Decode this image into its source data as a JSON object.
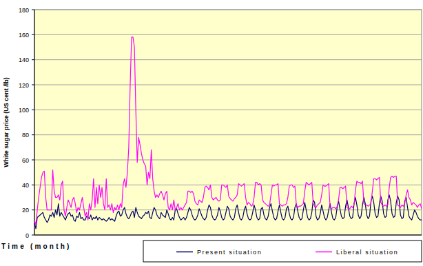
{
  "chart_data": {
    "type": "line",
    "y_label": "White sugar price (US cent /lb)",
    "x_label": "Time (month)",
    "ylim": [
      0,
      180
    ],
    "yticks": [
      0,
      20,
      40,
      60,
      80,
      100,
      120,
      140,
      160,
      180
    ],
    "grid": true,
    "legend": "bottom",
    "tick_labels": "y",
    "series": [
      {
        "name": "Present situation",
        "color": "#000066",
        "values": [
          10,
          5,
          14,
          15,
          16,
          17,
          18,
          14,
          12,
          10,
          12,
          16,
          15,
          18,
          14,
          20,
          16,
          25,
          15,
          18,
          16,
          14,
          12,
          15,
          17,
          18,
          15,
          16,
          12,
          11,
          15,
          14,
          18,
          13,
          14,
          12,
          12,
          15,
          14,
          13,
          16,
          12,
          14,
          13,
          15,
          12,
          14,
          13,
          12,
          13,
          12,
          11,
          12,
          14,
          12,
          13,
          12,
          11,
          15,
          18,
          19,
          15,
          16,
          20,
          22,
          17,
          14,
          13,
          15,
          18,
          19,
          14,
          22,
          18,
          15,
          14,
          13,
          15,
          16,
          18,
          17,
          19,
          14,
          13,
          18,
          22,
          20,
          16,
          14,
          13,
          18,
          16,
          15,
          14,
          20,
          17,
          13,
          12,
          14,
          12,
          20,
          21,
          17,
          14,
          12,
          13,
          14,
          12,
          14,
          18,
          22,
          20,
          16,
          13,
          12,
          13,
          16,
          21,
          18,
          15,
          13,
          12,
          14,
          20,
          24,
          22,
          16,
          13,
          12,
          13,
          16,
          22,
          19,
          14,
          12,
          13,
          18,
          23,
          21,
          15,
          13,
          12,
          14,
          21,
          24,
          18,
          13,
          12,
          14,
          20,
          23,
          17,
          13,
          12,
          13,
          18,
          24,
          20,
          14,
          12,
          13,
          21,
          22,
          16,
          13,
          12,
          15,
          22,
          25,
          19,
          14,
          12,
          13,
          19,
          24,
          18,
          13,
          12,
          14,
          21,
          23,
          17,
          13,
          12,
          14,
          22,
          25,
          19,
          14,
          12,
          13,
          20,
          26,
          20,
          14,
          12,
          13,
          18,
          28,
          26,
          15,
          12,
          13,
          17,
          24,
          19,
          14,
          12,
          14,
          20,
          25,
          18,
          13,
          12,
          14,
          22,
          27,
          21,
          15,
          13,
          14,
          23,
          28,
          22,
          15,
          13,
          14,
          25,
          30,
          24,
          16,
          13,
          15,
          24,
          30,
          25,
          16,
          13,
          15,
          27,
          31,
          26,
          17,
          14,
          15,
          25,
          31,
          27,
          17,
          14,
          15,
          28,
          32,
          27,
          17,
          14,
          15,
          26,
          31,
          28,
          16,
          13,
          14,
          27,
          30,
          22,
          15,
          13,
          12,
          16,
          20,
          18,
          15,
          13,
          12,
          12
        ]
      },
      {
        "name": "Liberal situation",
        "color": "#ff00ff",
        "values": [
          12,
          8,
          20,
          30,
          38,
          46,
          50,
          51,
          30,
          20,
          20,
          20,
          20,
          52,
          35,
          30,
          30,
          32,
          28,
          40,
          43,
          20,
          15,
          22,
          28,
          25,
          22,
          28,
          30,
          25,
          18,
          22,
          20,
          25,
          30,
          22,
          15,
          18,
          12,
          25,
          20,
          28,
          45,
          22,
          38,
          25,
          40,
          30,
          38,
          25,
          20,
          45,
          22,
          24,
          20,
          25,
          18,
          22,
          20,
          24,
          20,
          25,
          22,
          40,
          45,
          38,
          50,
          70,
          120,
          158,
          158,
          150,
          100,
          58,
          78,
          72,
          65,
          60,
          57,
          55,
          40,
          50,
          45,
          68,
          45,
          35,
          30,
          32,
          30,
          33,
          35,
          32,
          28,
          33,
          35,
          22,
          20,
          25,
          20,
          28,
          20,
          22,
          25,
          20,
          22,
          20,
          22,
          24,
          26,
          35,
          35,
          34,
          35,
          33,
          27,
          25,
          24,
          28,
          27,
          26,
          30,
          38,
          39,
          38,
          36,
          40,
          30,
          28,
          29,
          30,
          28,
          27,
          28,
          40,
          40,
          39,
          38,
          40,
          31,
          29,
          28,
          27,
          29,
          30,
          32,
          41,
          40,
          39,
          40,
          41,
          30,
          24,
          26,
          25,
          23,
          24,
          30,
          42,
          42,
          40,
          41,
          40,
          28,
          26,
          25,
          24,
          23,
          24,
          32,
          40,
          39,
          40,
          40,
          41,
          25,
          24,
          23,
          24,
          24,
          25,
          30,
          39,
          40,
          40,
          38,
          39,
          24,
          22,
          23,
          23,
          24,
          25,
          35,
          42,
          41,
          40,
          41,
          42,
          25,
          23,
          22,
          24,
          25,
          26,
          32,
          40,
          39,
          39,
          40,
          41,
          22,
          21,
          22,
          22,
          21,
          23,
          28,
          38,
          38,
          37,
          38,
          39,
          22,
          21,
          21,
          23,
          22,
          24,
          36,
          43,
          42,
          42,
          41,
          43,
          25,
          24,
          24,
          23,
          24,
          25,
          35,
          45,
          45,
          44,
          45,
          46,
          26,
          24,
          23,
          24,
          23,
          24,
          38,
          46,
          47,
          46,
          47,
          47,
          24,
          23,
          22,
          24,
          23,
          25,
          32,
          36,
          30,
          28,
          24,
          26,
          25,
          24,
          22,
          24,
          25,
          21
        ]
      }
    ]
  }
}
